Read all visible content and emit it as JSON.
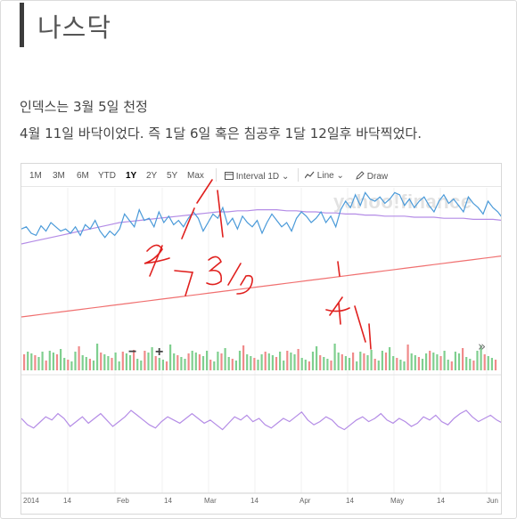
{
  "header": {
    "title": "나스닥"
  },
  "body_text": {
    "line1": "인덱스는 3월 5일 천정",
    "line2": "4월 11일 바닥이었다. 즉 1달 6일 혹은 침공후 1달 12일후 바닥찍었다."
  },
  "chart_toolbar": {
    "ranges": [
      "1M",
      "3M",
      "6M",
      "YTD",
      "1Y",
      "2Y",
      "5Y",
      "Max"
    ],
    "active_range": "1Y",
    "interval_label": "Interval",
    "interval_value": "1D",
    "line_label": "Line",
    "draw_label": "Draw"
  },
  "watermark": "yahoo!finance",
  "zoom": {
    "minus": "−",
    "plus": "+"
  },
  "expand_icon": "»",
  "x_axis_labels": [
    "2014",
    "14",
    "Feb",
    "14",
    "Mar",
    "14",
    "Apr",
    "14",
    "May",
    "14",
    "Jun"
  ],
  "annotations": {
    "handwritten": [
      "2/7",
      "3/5",
      "4/11"
    ],
    "color": "#e0201e"
  },
  "colors": {
    "price_line": "#4a9ad9",
    "ma_purple": "#b48ce6",
    "ma_red": "#f07070",
    "volume_up": "#7fcf8f",
    "volume_down": "#f08a8a",
    "indicator": "#b48ce6"
  },
  "chart_data": {
    "type": "line",
    "series": [
      {
        "values": [
          64,
          66,
          60,
          58,
          67,
          62,
          70,
          66,
          62,
          64,
          60,
          66,
          58,
          68,
          64,
          72,
          62,
          56,
          62,
          58,
          64,
          78,
          72,
          66,
          82,
          72,
          74,
          66,
          80,
          70,
          76,
          68,
          72,
          66,
          74,
          80,
          74,
          62,
          70,
          78,
          74,
          84,
          68,
          74,
          64,
          76,
          70,
          66,
          72,
          60,
          70,
          78,
          72,
          66,
          70,
          62,
          74,
          80,
          76,
          70,
          74,
          80,
          70,
          76,
          66,
          82,
          90,
          84,
          96,
          86,
          98,
          92,
          90,
          94,
          88,
          92,
          98,
          96,
          86,
          92,
          84,
          90,
          94,
          86,
          80,
          90,
          96,
          88,
          92,
          86,
          80,
          94,
          88,
          84,
          78,
          90,
          84,
          80,
          74
        ]
      },
      {
        "values": [
          50,
          52,
          54,
          56,
          58,
          60,
          62,
          64,
          66,
          68,
          70,
          71,
          72,
          73,
          74,
          75,
          76,
          77,
          78,
          79,
          80,
          80,
          81,
          81,
          82,
          82,
          82,
          81,
          81,
          80,
          80,
          79,
          79,
          78,
          78,
          77,
          77,
          76,
          76,
          76,
          75,
          75,
          75,
          74,
          74,
          74,
          73,
          73,
          73,
          72
        ]
      },
      {
        "values": [
          20,
          21,
          22,
          23,
          24,
          25,
          26,
          27,
          28,
          29,
          30,
          31,
          32,
          33,
          34,
          35,
          36,
          37,
          38,
          39,
          40,
          41,
          42,
          43,
          44,
          45,
          46,
          47,
          48,
          49,
          50,
          51,
          52,
          53,
          54,
          55,
          56,
          57,
          58,
          59,
          60,
          61,
          62,
          63,
          64,
          65,
          66,
          67,
          68,
          69
        ]
      },
      {
        "values": [
          60,
          52,
          48,
          55,
          62,
          58,
          66,
          60,
          50,
          56,
          62,
          54,
          60,
          66,
          58,
          50,
          56,
          62,
          70,
          64,
          58,
          52,
          48,
          56,
          62,
          58,
          54,
          60,
          66,
          60,
          54,
          58,
          52,
          46,
          54,
          62,
          58,
          64,
          56,
          60,
          52,
          48,
          54,
          60,
          56,
          62,
          68,
          58,
          52,
          56,
          62,
          58,
          50,
          46,
          52,
          58,
          62,
          56,
          60,
          66,
          58,
          54,
          60,
          56,
          50,
          54,
          62,
          58,
          64,
          56,
          52,
          60,
          66,
          70,
          62,
          56,
          60,
          64,
          58,
          54
        ]
      }
    ]
  }
}
